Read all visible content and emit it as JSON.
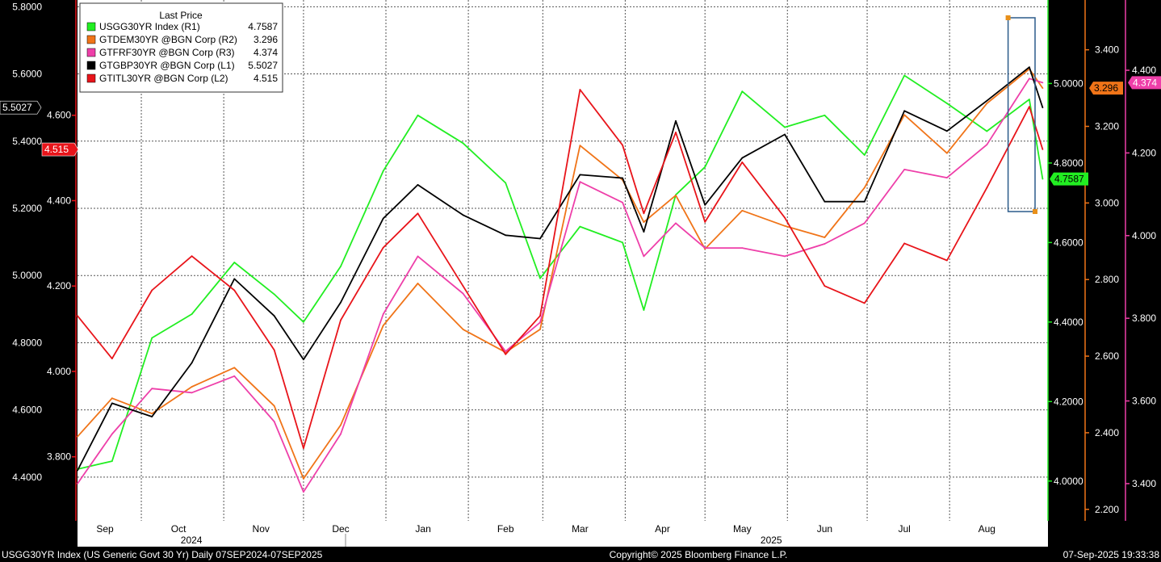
{
  "footer": {
    "left": "USGG30YR Index (US Generic Govt 30 Yr)  Daily 07SEP2024-07SEP2025",
    "center": "Copyright© 2025 Bloomberg Finance L.P.",
    "right": "07-Sep-2025 19:33:38"
  },
  "legend": {
    "title": "Last Price",
    "entries": [
      {
        "label": "USGG30YR Index  (R1)",
        "value": "4.7587",
        "color": "#22ee22"
      },
      {
        "label": "GTDEM30YR @BGN Corp  (R2)",
        "value": "3.296",
        "color": "#f07418"
      },
      {
        "label": "GTFRF30YR @BGN Corp  (R3)",
        "value": "4.374",
        "color": "#ee3fa9"
      },
      {
        "label": "GTGBP30YR @BGN Corp  (L1)",
        "value": "5.5027",
        "color": "#000000"
      },
      {
        "label": "GTITL30YR @BGN Corp  (L2)",
        "value": "4.515",
        "color": "#e8141a"
      }
    ]
  },
  "chart_data": {
    "type": "line",
    "x_range": [
      "2024-09-07",
      "2025-09-07"
    ],
    "month_labels": [
      "Sep",
      "Oct",
      "Nov",
      "Dec",
      "Jan",
      "Feb",
      "Mar",
      "Apr",
      "May",
      "Jun",
      "Jul",
      "Aug"
    ],
    "year_labels": [
      "2024",
      "2025"
    ],
    "grid": true,
    "legend_position": "top-left",
    "axes": {
      "L1": {
        "ticks": [
          "5.8000",
          "5.6000",
          "5.4000",
          "5.2000",
          "5.0000",
          "4.8000",
          "4.6000",
          "4.4000"
        ],
        "range": [
          4.27,
          5.82
        ],
        "color": "#ffffff"
      },
      "L2": {
        "ticks": [
          "4.600",
          "4.400",
          "4.200",
          "4.000",
          "3.800"
        ],
        "range": [
          3.65,
          4.87
        ],
        "color": "#e8141a"
      },
      "R1": {
        "ticks": [
          "5.0000",
          "4.8000",
          "4.6000",
          "4.4000",
          "4.2000",
          "4.0000"
        ],
        "range": [
          3.9,
          5.21
        ],
        "color": "#22ee22"
      },
      "R2": {
        "ticks": [
          "3.400",
          "3.200",
          "3.000",
          "2.800",
          "2.600",
          "2.400",
          "2.200"
        ],
        "range": [
          2.17,
          3.53
        ],
        "color": "#f07418"
      },
      "R3": {
        "ticks": [
          "4.400",
          "4.200",
          "4.000",
          "3.800",
          "3.600",
          "3.400"
        ],
        "range": [
          3.31,
          4.57
        ],
        "color": "#ee3fa9"
      }
    },
    "last_values": {
      "L1": {
        "text": "5.5027",
        "bg": "#000000",
        "fg": "#ffffff"
      },
      "L2": {
        "text": "4.515",
        "bg": "#e8141a",
        "fg": "#ffffff"
      },
      "R1": {
        "text": "4.7587",
        "bg": "#22ee22",
        "fg": "#000000"
      },
      "R2": {
        "text": "3.296",
        "bg": "#f07418",
        "fg": "#000000"
      },
      "R3": {
        "text": "4.374",
        "bg": "#ee3fa9",
        "fg": "#ffffff"
      }
    },
    "series": [
      {
        "name": "USGG30YR Index",
        "axis": "R1",
        "color": "#22ee22",
        "dates": [
          "2024-09-07",
          "2024-09-20",
          "2024-10-05",
          "2024-10-20",
          "2024-11-05",
          "2024-11-20",
          "2024-12-01",
          "2024-12-15",
          "2024-12-31",
          "2025-01-13",
          "2025-01-30",
          "2025-02-15",
          "2025-02-28",
          "2025-03-15",
          "2025-03-31",
          "2025-04-08",
          "2025-04-20",
          "2025-05-01",
          "2025-05-15",
          "2025-05-31",
          "2025-06-15",
          "2025-06-30",
          "2025-07-15",
          "2025-07-31",
          "2025-08-15",
          "2025-08-31",
          "2025-09-05"
        ],
        "values": [
          4.03,
          4.05,
          4.36,
          4.42,
          4.55,
          4.47,
          4.4,
          4.54,
          4.78,
          4.92,
          4.85,
          4.75,
          4.51,
          4.64,
          4.6,
          4.43,
          4.72,
          4.79,
          4.98,
          4.89,
          4.92,
          4.82,
          5.02,
          4.95,
          4.88,
          4.96,
          4.76
        ]
      },
      {
        "name": "GTDEM30YR @BGN Corp",
        "axis": "R2",
        "color": "#f07418",
        "dates": [
          "2024-09-07",
          "2024-09-20",
          "2024-10-05",
          "2024-10-20",
          "2024-11-05",
          "2024-11-20",
          "2024-12-01",
          "2024-12-15",
          "2024-12-31",
          "2025-01-13",
          "2025-01-30",
          "2025-02-15",
          "2025-02-28",
          "2025-03-15",
          "2025-03-31",
          "2025-04-08",
          "2025-04-20",
          "2025-05-01",
          "2025-05-15",
          "2025-05-31",
          "2025-06-15",
          "2025-06-30",
          "2025-07-15",
          "2025-07-31",
          "2025-08-15",
          "2025-08-31",
          "2025-09-05"
        ],
        "values": [
          2.39,
          2.49,
          2.45,
          2.52,
          2.57,
          2.47,
          2.28,
          2.42,
          2.68,
          2.79,
          2.67,
          2.61,
          2.67,
          3.15,
          3.06,
          2.95,
          3.02,
          2.88,
          2.98,
          2.94,
          2.91,
          3.04,
          3.23,
          3.13,
          3.26,
          3.35,
          3.3
        ]
      },
      {
        "name": "GTFRF30YR @BGN Corp",
        "axis": "R3",
        "color": "#ee3fa9",
        "dates": [
          "2024-09-07",
          "2024-09-20",
          "2024-10-05",
          "2024-10-20",
          "2024-11-05",
          "2024-11-20",
          "2024-12-01",
          "2024-12-15",
          "2024-12-31",
          "2025-01-13",
          "2025-01-30",
          "2025-02-15",
          "2025-02-28",
          "2025-03-15",
          "2025-03-31",
          "2025-04-08",
          "2025-04-20",
          "2025-05-01",
          "2025-05-15",
          "2025-05-31",
          "2025-06-15",
          "2025-06-30",
          "2025-07-15",
          "2025-07-31",
          "2025-08-15",
          "2025-08-31",
          "2025-09-05"
        ],
        "values": [
          3.4,
          3.52,
          3.63,
          3.62,
          3.66,
          3.55,
          3.38,
          3.52,
          3.81,
          3.95,
          3.86,
          3.72,
          3.79,
          4.13,
          4.08,
          3.95,
          4.03,
          3.97,
          3.97,
          3.95,
          3.98,
          4.03,
          4.16,
          4.14,
          4.22,
          4.38,
          4.37
        ]
      },
      {
        "name": "GTGBP30YR @BGN Corp",
        "axis": "L1",
        "color": "#000000",
        "dates": [
          "2024-09-07",
          "2024-09-20",
          "2024-10-05",
          "2024-10-20",
          "2024-11-05",
          "2024-11-20",
          "2024-12-01",
          "2024-12-15",
          "2024-12-31",
          "2025-01-13",
          "2025-01-30",
          "2025-02-15",
          "2025-02-28",
          "2025-03-15",
          "2025-03-31",
          "2025-04-08",
          "2025-04-20",
          "2025-05-01",
          "2025-05-15",
          "2025-05-31",
          "2025-06-15",
          "2025-06-30",
          "2025-07-15",
          "2025-07-31",
          "2025-08-15",
          "2025-08-31",
          "2025-09-05"
        ],
        "values": [
          4.42,
          4.62,
          4.58,
          4.74,
          4.99,
          4.88,
          4.75,
          4.92,
          5.17,
          5.27,
          5.18,
          5.12,
          5.11,
          5.3,
          5.29,
          5.13,
          5.46,
          5.21,
          5.35,
          5.42,
          5.22,
          5.22,
          5.49,
          5.43,
          5.52,
          5.62,
          5.5
        ]
      },
      {
        "name": "GTITL30YR @BGN Corp",
        "axis": "L2",
        "color": "#e8141a",
        "dates": [
          "2024-09-07",
          "2024-09-20",
          "2024-10-05",
          "2024-10-20",
          "2024-11-05",
          "2024-11-20",
          "2024-12-01",
          "2024-12-15",
          "2024-12-31",
          "2025-01-13",
          "2025-01-30",
          "2025-02-15",
          "2025-02-28",
          "2025-03-15",
          "2025-03-31",
          "2025-04-08",
          "2025-04-20",
          "2025-05-01",
          "2025-05-15",
          "2025-05-31",
          "2025-06-15",
          "2025-06-30",
          "2025-07-15",
          "2025-07-31",
          "2025-08-15",
          "2025-08-31",
          "2025-09-05"
        ],
        "values": [
          4.13,
          4.03,
          4.19,
          4.27,
          4.19,
          4.05,
          3.82,
          4.12,
          4.29,
          4.37,
          4.2,
          4.04,
          4.13,
          4.66,
          4.53,
          4.37,
          4.56,
          4.35,
          4.49,
          4.36,
          4.2,
          4.16,
          4.3,
          4.26,
          4.43,
          4.62,
          4.52
        ]
      }
    ]
  }
}
